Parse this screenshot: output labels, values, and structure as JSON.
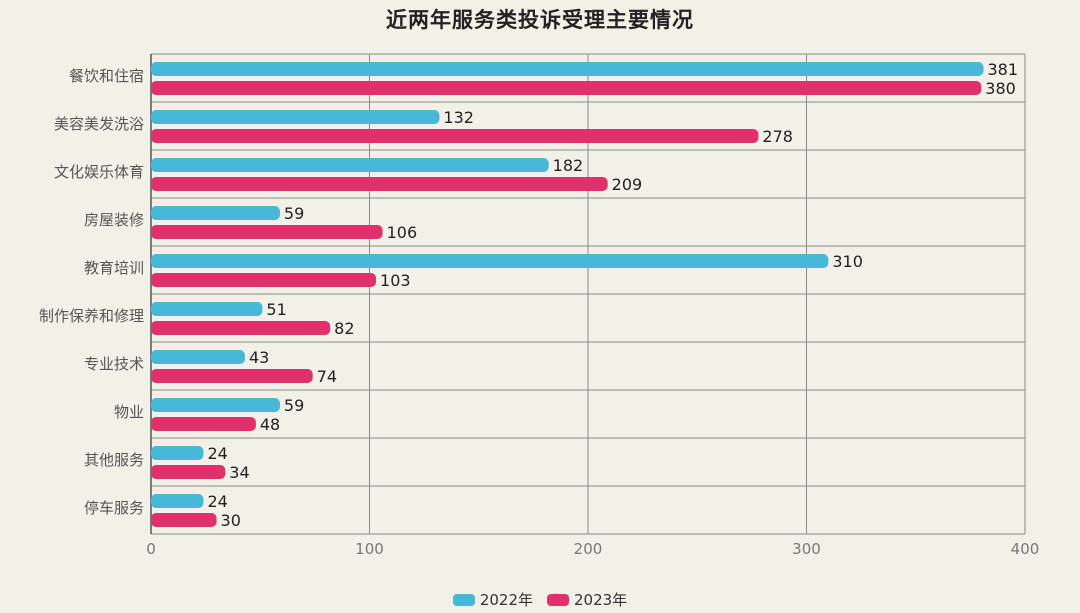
{
  "chart_data": {
    "type": "bar",
    "orientation": "horizontal",
    "title": "近两年服务类投诉受理主要情况",
    "categories": [
      "餐饮和住宿",
      "美容美发洗浴",
      "文化娱乐体育",
      "房屋装修",
      "教育培训",
      "制作保养和修理",
      "专业技术",
      "物业",
      "其他服务",
      "停车服务"
    ],
    "series": [
      {
        "name": "2022年",
        "color": "#47b8d6",
        "values": [
          381,
          132,
          182,
          59,
          310,
          51,
          43,
          59,
          24,
          24
        ]
      },
      {
        "name": "2023年",
        "color": "#e1306c",
        "values": [
          380,
          278,
          209,
          106,
          103,
          82,
          74,
          48,
          34,
          30
        ]
      }
    ],
    "xlim": [
      0,
      400
    ],
    "xticks": [
      0,
      100,
      200,
      300,
      400
    ],
    "grid": true,
    "data_labels": true,
    "legend_position": "bottom"
  }
}
